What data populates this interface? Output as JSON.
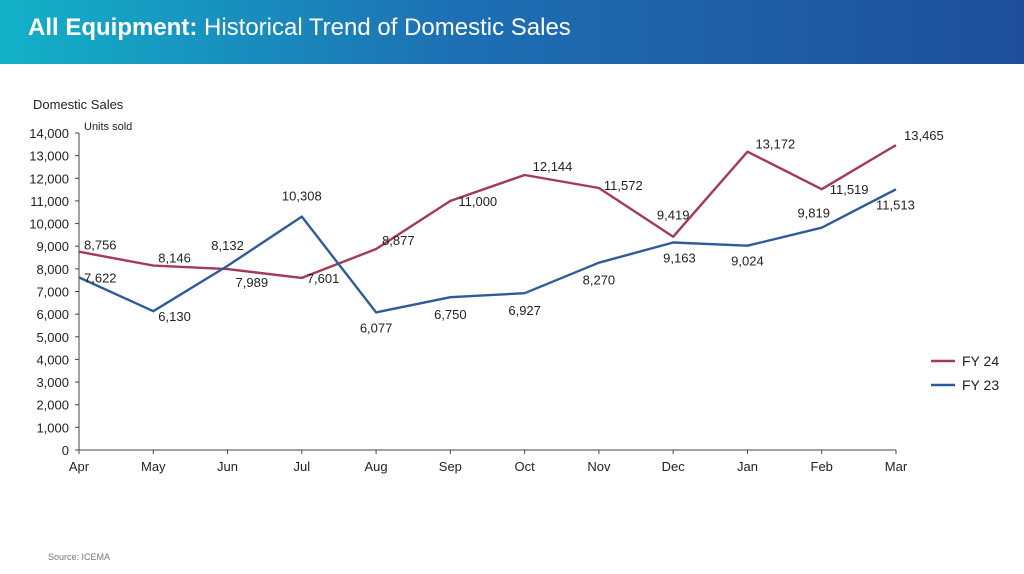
{
  "header": {
    "title_bold": "All  Equipment:",
    "title_rest": " Historical Trend of Domestic Sales"
  },
  "source": "Source: ICEMA",
  "colors": {
    "fy24": "#a33a5a",
    "fy23": "#2e5c99"
  },
  "chart_data": {
    "type": "line",
    "title": "Domestic Sales",
    "ylabel": "Units sold",
    "xlabel": "",
    "categories": [
      "Apr",
      "May",
      "Jun",
      "Jul",
      "Aug",
      "Sep",
      "Oct",
      "Nov",
      "Dec",
      "Jan",
      "Feb",
      "Mar"
    ],
    "ylim": [
      0,
      14000
    ],
    "ytick_step": 1000,
    "grid": false,
    "legend": "right",
    "series": [
      {
        "name": "FY 24",
        "values": [
          8756,
          8146,
          7989,
          7601,
          8877,
          11000,
          12144,
          11572,
          9419,
          13172,
          11519,
          13465
        ]
      },
      {
        "name": "FY 23",
        "values": [
          7622,
          6130,
          8132,
          10308,
          6077,
          6750,
          6927,
          8270,
          9163,
          9024,
          9819,
          11513
        ]
      }
    ]
  }
}
